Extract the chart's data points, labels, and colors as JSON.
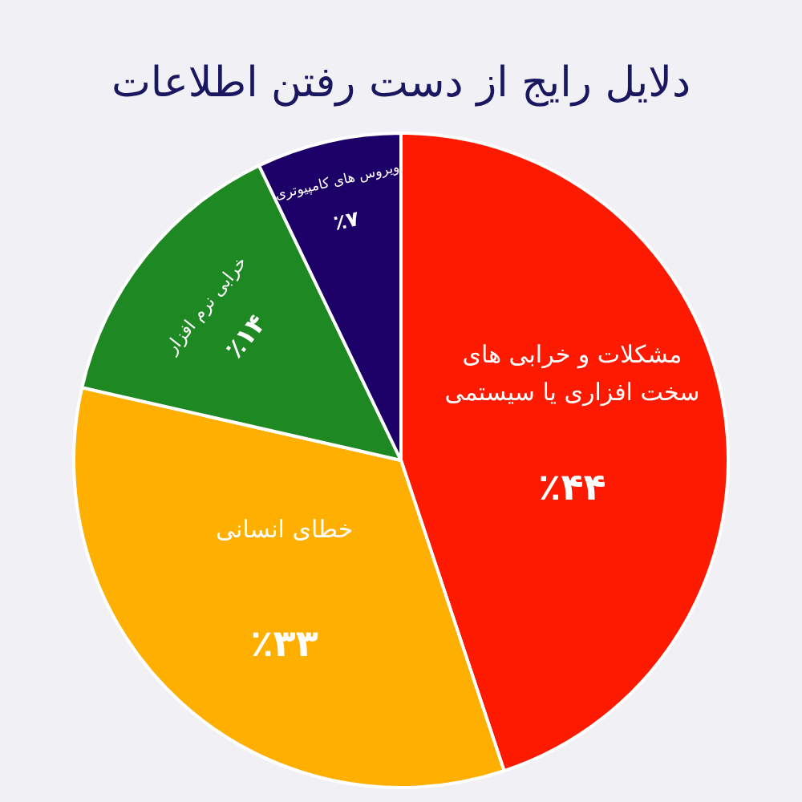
{
  "chart_data": {
    "type": "pie",
    "title": "دلایل رایج از دست رفتن اطلاعات",
    "categories": [
      "مشکلات و خرابی های سخت افزاری یا سیستمی",
      "خطای انسانی",
      "خرابی نرم افزار",
      "ویروس های کامپیوتری"
    ],
    "values": [
      44,
      33,
      14,
      7
    ],
    "colors": [
      "#fe1a00",
      "#ffaf00",
      "#1e8923",
      "#1c0068"
    ],
    "value_labels": [
      "٪۴۴",
      "٪۳۳",
      "٪۱۴",
      "٪۷"
    ],
    "legend": false
  }
}
